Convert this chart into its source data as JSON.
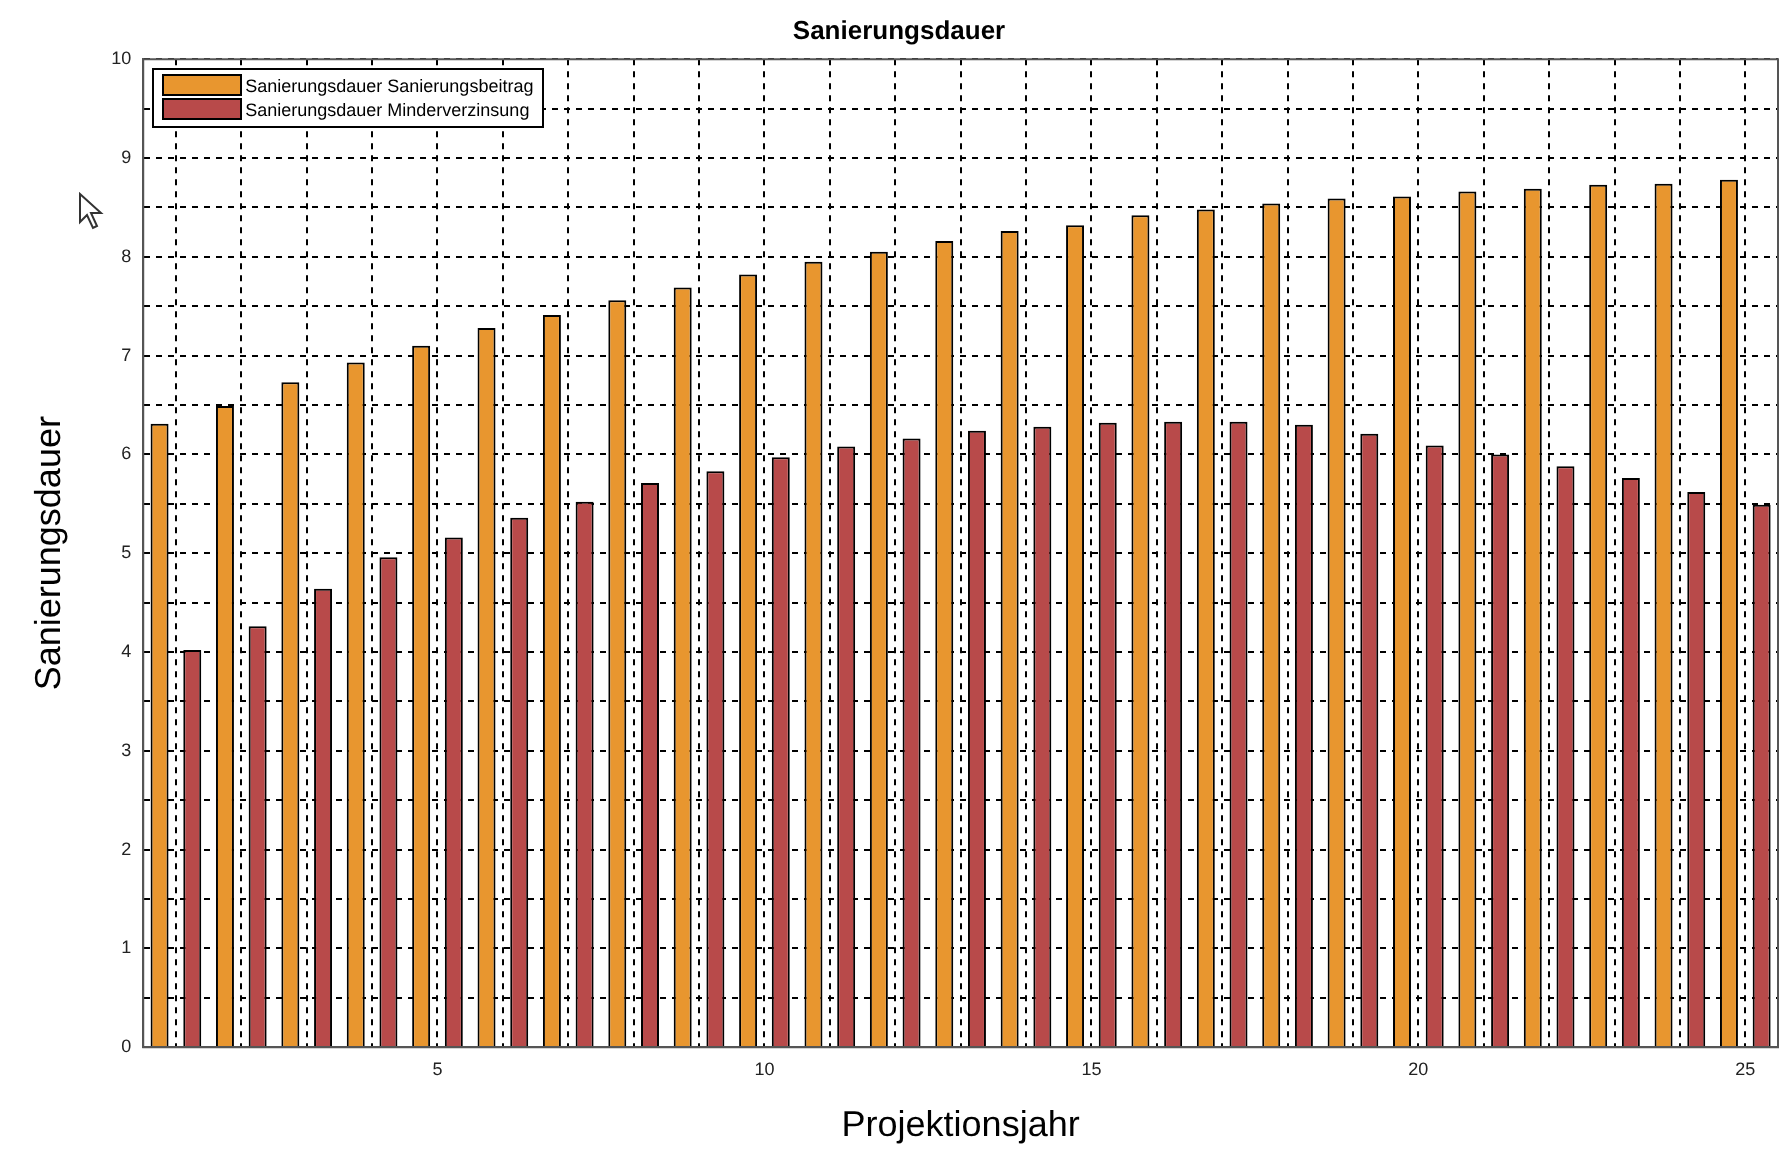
{
  "chart_data": {
    "type": "bar",
    "title": "Sanierungsdauer",
    "xlabel": "Projektionsjahr",
    "ylabel": "Sanierungsdauer",
    "categories": [
      null,
      null,
      null,
      null,
      "5",
      null,
      null,
      null,
      null,
      "10",
      null,
      null,
      null,
      null,
      "15",
      null,
      null,
      null,
      null,
      "20",
      null,
      null,
      null,
      null,
      "25"
    ],
    "series": [
      {
        "name": "Sanierungsdauer Sanierungsbeitrag",
        "color": "#e8962f",
        "values": [
          6.31,
          6.49,
          6.73,
          6.93,
          7.1,
          7.28,
          7.41,
          7.56,
          7.69,
          7.82,
          7.95,
          8.05,
          8.16,
          8.26,
          8.32,
          8.42,
          8.48,
          8.54,
          8.59,
          8.61,
          8.66,
          8.69,
          8.73,
          8.74,
          8.78
        ]
      },
      {
        "name": "Sanierungsdauer Minderverzinsung",
        "color": "#b84a4a",
        "values": [
          4.02,
          4.26,
          4.64,
          4.96,
          5.16,
          5.36,
          5.52,
          5.71,
          5.83,
          5.97,
          6.08,
          6.16,
          6.24,
          6.28,
          6.32,
          6.33,
          6.33,
          6.3,
          6.21,
          6.09,
          6.0,
          5.88,
          5.76,
          5.62,
          5.49
        ]
      }
    ],
    "ylim": [
      0,
      10
    ],
    "yticks": [
      0,
      {
        "value": 0.5,
        "label": null
      },
      1,
      {
        "value": 1.5,
        "label": null
      },
      2,
      {
        "value": 2.5,
        "label": null
      },
      3,
      {
        "value": 3.5,
        "label": null
      },
      4,
      {
        "value": 4.5,
        "label": null
      },
      5,
      {
        "value": 5.5,
        "label": null
      },
      6,
      {
        "value": 6.5,
        "label": null
      },
      7,
      {
        "value": 7.5,
        "label": null
      },
      8,
      {
        "value": 8.5,
        "label": null
      },
      9,
      {
        "value": 9.5,
        "label": null
      },
      10
    ],
    "grid": true,
    "legend": "top left"
  }
}
